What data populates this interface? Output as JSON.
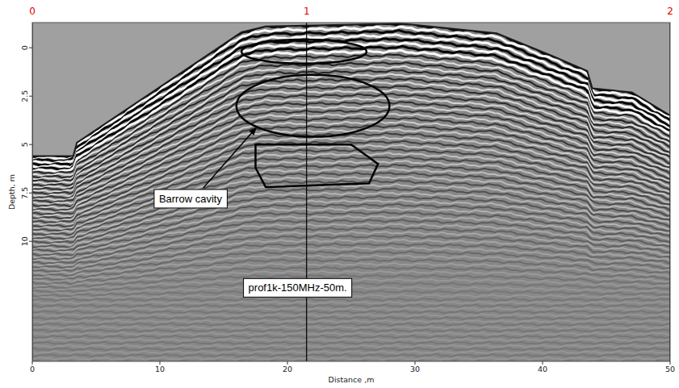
{
  "chart_data": {
    "type": "radargram",
    "x_label": "Distance ,m",
    "y_label": "Depth, m",
    "xlim": [
      0,
      50
    ],
    "ylim": [
      -1.3,
      16.2
    ],
    "xticks": [
      0,
      10,
      20,
      30,
      40,
      50
    ],
    "yticks": [
      0,
      2.5,
      5,
      7.5,
      10
    ],
    "x": [
      0,
      3.2,
      3.5,
      16.4,
      18.3,
      28.9,
      36.4,
      40.7,
      43.5,
      43.9,
      47.0,
      50
    ],
    "values": [
      5.6,
      5.6,
      4.9,
      -0.8,
      -1.1,
      -1.25,
      -0.75,
      0.4,
      1.2,
      2.1,
      2.3,
      3.5
    ],
    "markers": {
      "x": [
        0,
        21.5,
        50
      ],
      "labels": [
        "0",
        "1",
        "2"
      ],
      "color": "#e00000"
    },
    "regions": [
      {
        "shape": "ellipse",
        "cx": 21.3,
        "cy": 0.2,
        "rx": 4.9,
        "ry": 0.62
      },
      {
        "shape": "ellipse",
        "cx": 22.0,
        "cy": 3.0,
        "rx": 6.0,
        "ry": 1.6
      },
      {
        "shape": "polygon",
        "points": [
          [
            17.5,
            5.0
          ],
          [
            25.0,
            5.0
          ],
          [
            27.1,
            6.0
          ],
          [
            26.4,
            7.0
          ],
          [
            18.3,
            7.2
          ],
          [
            17.5,
            6.2
          ]
        ]
      }
    ],
    "annotations": [
      {
        "text": "Barrow cavity",
        "x": 12.4,
        "y": 7.8,
        "arrow_to": [
          17.6,
          4.1
        ]
      },
      {
        "text": "prof1k-150MHz-50m.",
        "x": 20.8,
        "y": 12.4
      }
    ]
  }
}
